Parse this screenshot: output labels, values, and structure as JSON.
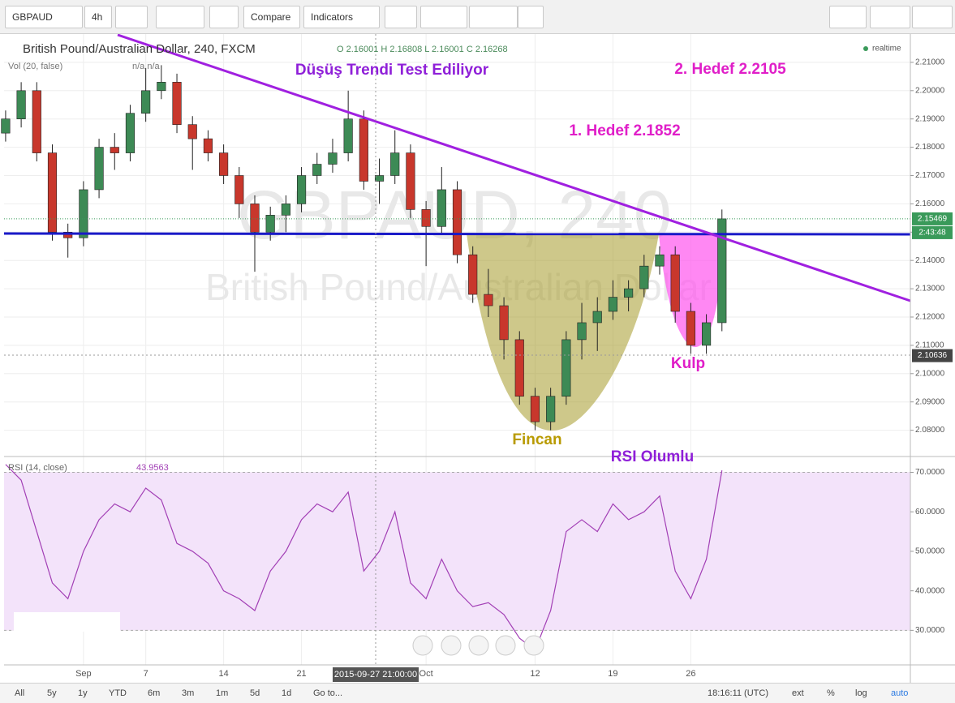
{
  "toolbar": {
    "symbol": "GBPAUD",
    "interval": "4h",
    "compare": "Compare",
    "indicators": "Indicators"
  },
  "chart_data": [
    {
      "type": "candlestick",
      "title": "British Pound/Australian Dollar, 240, FXCM",
      "ohlc_legend": "O 2.16001 H 2.16808 L 2.16001 C 2.16268",
      "volume_label": "Vol (20, false)",
      "volume_values": "n/a n/a",
      "status": "realtime",
      "watermark_symbol": "GBPAUD, 240",
      "watermark_name": "British Pound/Australian Dollar",
      "x": [
        -5,
        -4,
        -3,
        -2,
        -1,
        0,
        1,
        2,
        3,
        4,
        5,
        6,
        7,
        8,
        9,
        10,
        11,
        12,
        13,
        14,
        15,
        16,
        17,
        18,
        19,
        20,
        21,
        22,
        23,
        24,
        25,
        26,
        27,
        28,
        29,
        30,
        31,
        32,
        33,
        34,
        35,
        36,
        37,
        38,
        39,
        40,
        41
      ],
      "open": [
        2.185,
        2.19,
        2.2,
        2.178,
        2.15,
        2.148,
        2.165,
        2.18,
        2.178,
        2.192,
        2.2,
        2.203,
        2.188,
        2.183,
        2.178,
        2.17,
        2.16,
        2.15,
        2.156,
        2.16,
        2.17,
        2.174,
        2.178,
        2.19,
        2.168,
        2.17,
        2.178,
        2.158,
        2.152,
        2.165,
        2.142,
        2.128,
        2.124,
        2.112,
        2.092,
        2.083,
        2.092,
        2.112,
        2.118,
        2.122,
        2.127,
        2.13,
        2.138,
        2.142,
        2.122,
        2.11,
        2.118
      ],
      "high": [
        2.193,
        2.203,
        2.203,
        2.181,
        2.153,
        2.168,
        2.183,
        2.185,
        2.195,
        2.208,
        2.209,
        2.206,
        2.191,
        2.186,
        2.181,
        2.173,
        2.163,
        2.159,
        2.163,
        2.173,
        2.178,
        2.183,
        2.2,
        2.193,
        2.176,
        2.186,
        2.181,
        2.161,
        2.173,
        2.168,
        2.145,
        2.137,
        2.127,
        2.115,
        2.095,
        2.095,
        2.115,
        2.125,
        2.127,
        2.133,
        2.133,
        2.142,
        2.145,
        2.145,
        2.125,
        2.121,
        2.158
      ],
      "low": [
        2.182,
        2.187,
        2.175,
        2.147,
        2.141,
        2.145,
        2.162,
        2.172,
        2.175,
        2.189,
        2.197,
        2.185,
        2.172,
        2.175,
        2.167,
        2.155,
        2.136,
        2.147,
        2.15,
        2.157,
        2.167,
        2.171,
        2.175,
        2.165,
        2.16,
        2.167,
        2.155,
        2.138,
        2.149,
        2.139,
        2.125,
        2.12,
        2.105,
        2.089,
        2.08,
        2.08,
        2.089,
        2.105,
        2.108,
        2.119,
        2.122,
        2.127,
        2.135,
        2.118,
        2.107,
        2.107,
        2.115
      ],
      "close": [
        2.19,
        2.2,
        2.178,
        2.15,
        2.148,
        2.165,
        2.18,
        2.178,
        2.192,
        2.2,
        2.203,
        2.188,
        2.183,
        2.178,
        2.17,
        2.16,
        2.15,
        2.156,
        2.16,
        2.17,
        2.174,
        2.178,
        2.19,
        2.168,
        2.17,
        2.178,
        2.158,
        2.152,
        2.165,
        2.142,
        2.128,
        2.124,
        2.112,
        2.092,
        2.083,
        2.092,
        2.112,
        2.118,
        2.122,
        2.127,
        2.13,
        2.138,
        2.142,
        2.122,
        2.11,
        2.118,
        2.1547
      ],
      "up_color": "#3d8a55",
      "down_color": "#c8372c",
      "xlim": [
        -5.1,
        53.1
      ],
      "xticks": [
        {
          "value": 0,
          "label": "Sep"
        },
        {
          "value": 4,
          "label": "7"
        },
        {
          "value": 9,
          "label": "14"
        },
        {
          "value": 14,
          "label": "21"
        },
        {
          "value": 22,
          "label": "Oct"
        },
        {
          "value": 29,
          "label": "12"
        },
        {
          "value": 34,
          "label": "19"
        },
        {
          "value": 39,
          "label": "26"
        }
      ],
      "crosshair_label": "2015-09-27 21:00:00",
      "ylim": [
        2.071,
        2.22
      ],
      "yticks": [
        {
          "value": 2.08,
          "label": "2.08000"
        },
        {
          "value": 2.09,
          "label": "2.09000"
        },
        {
          "value": 2.1,
          "label": "2.10000"
        },
        {
          "value": 2.11,
          "label": "2.11000"
        },
        {
          "value": 2.12,
          "label": "2.12000"
        },
        {
          "value": 2.13,
          "label": "2.13000"
        },
        {
          "value": 2.14,
          "label": "2.14000"
        },
        {
          "value": 2.15,
          "label": "2.15000"
        },
        {
          "value": 2.16,
          "label": "2.16000"
        },
        {
          "value": 2.17,
          "label": "2.17000"
        },
        {
          "value": 2.18,
          "label": "2.18000"
        },
        {
          "value": 2.19,
          "label": "2.19000"
        },
        {
          "value": 2.2,
          "label": "2.20000"
        },
        {
          "value": 2.21,
          "label": "2.21000"
        }
      ],
      "last_price": 2.15469,
      "countdown": "2:43:48",
      "crosshair_price": 2.10636,
      "annotations": [
        "Düşüş Trendi Test Ediliyor",
        "2. Hedef 2.2105",
        "1. Hedef 2.1852",
        "Kulp",
        "Fincan",
        "RSI Olumlu"
      ]
    },
    {
      "type": "line",
      "title": "RSI (14, close)",
      "last_value": "43.9563",
      "color": "#a23fb5",
      "x": [
        -5,
        -4,
        -3,
        -2,
        -1,
        0,
        1,
        2,
        3,
        4,
        5,
        6,
        7,
        8,
        9,
        10,
        11,
        12,
        13,
        14,
        15,
        16,
        17,
        18,
        19,
        20,
        21,
        22,
        23,
        24,
        25,
        26,
        27,
        28,
        29,
        30,
        31,
        32,
        33,
        34,
        35,
        36,
        37,
        38,
        39,
        40,
        41
      ],
      "values": [
        72,
        68,
        55,
        42,
        38,
        50,
        58,
        62,
        60,
        66,
        63,
        52,
        50,
        47,
        40,
        38,
        35,
        45,
        50,
        58,
        62,
        60,
        65,
        45,
        50,
        60,
        42,
        38,
        48,
        40,
        36,
        37,
        34,
        28,
        25,
        35,
        55,
        58,
        55,
        62,
        58,
        60,
        64,
        45,
        38,
        48,
        70.5
      ],
      "ylim": [
        21.25,
        74
      ],
      "yticks": [
        {
          "value": 30,
          "label": "30.0000"
        },
        {
          "value": 40,
          "label": "40.0000"
        },
        {
          "value": 50,
          "label": "50.0000"
        },
        {
          "value": 60,
          "label": "60.0000"
        },
        {
          "value": 70,
          "label": "70.0000"
        }
      ]
    }
  ],
  "bottom_bar": {
    "ranges": [
      "All",
      "5y",
      "1y",
      "YTD",
      "6m",
      "3m",
      "1m",
      "5d",
      "1d"
    ],
    "goto": "Go to...",
    "clock": "18:16:11 (UTC)",
    "options": [
      "ext",
      "%",
      "log",
      "auto"
    ]
  }
}
